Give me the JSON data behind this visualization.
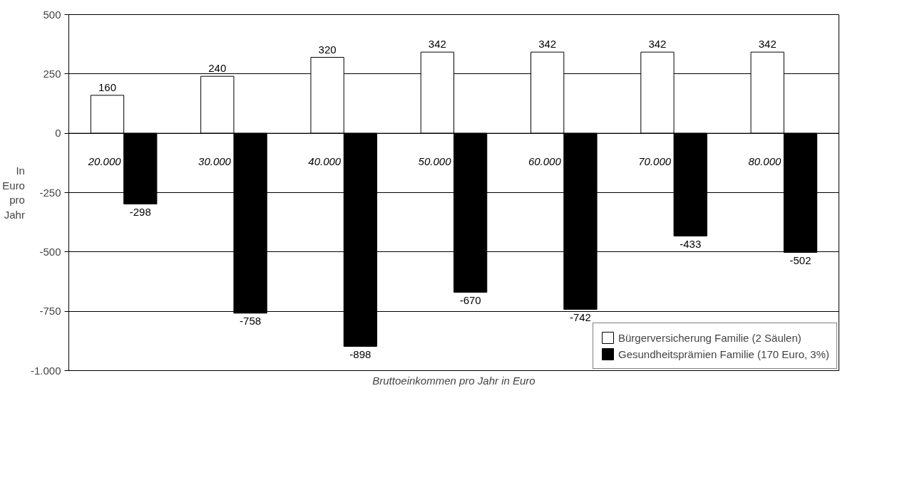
{
  "chart_data": {
    "type": "bar",
    "categories": [
      "20.000",
      "30.000",
      "40.000",
      "50.000",
      "60.000",
      "70.000",
      "80.000"
    ],
    "xlabel": "Bruttoeinkommen pro Jahr in Euro",
    "ylabel": "In Euro pro Jahr",
    "series": [
      {
        "name": "Bürgerversicherung Familie (2 Säulen)",
        "color": "#ffffff",
        "values": [
          160,
          240,
          320,
          342,
          342,
          342,
          342
        ]
      },
      {
        "name": "Gesundheitsprämien Familie (170 Euro, 3%)",
        "color": "#000000",
        "values": [
          -298,
          -758,
          -898,
          -670,
          -742,
          -433,
          -502
        ]
      }
    ],
    "ylim": [
      -1000,
      500
    ],
    "yticks": [
      500,
      250,
      0,
      -250,
      -500,
      -750,
      {
        "value": -1000,
        "label": "-1.000"
      }
    ],
    "grid": "y",
    "legend": "bottom right",
    "data_labels": true
  }
}
